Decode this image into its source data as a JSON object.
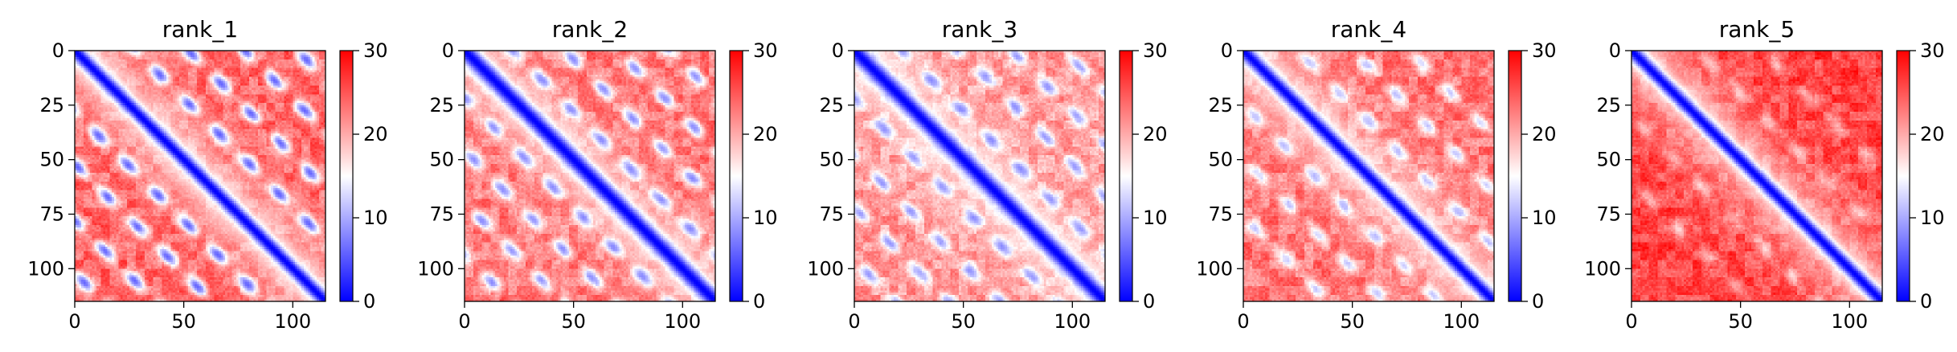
{
  "chart_data": [
    {
      "type": "heatmap",
      "title": "rank_1",
      "size": 115,
      "xlim": [
        0,
        115
      ],
      "ylim": [
        115,
        0
      ],
      "x_ticks": [
        0,
        50,
        100
      ],
      "y_ticks": [
        0,
        25,
        50,
        75,
        100
      ],
      "colorbar": {
        "colormap": "bwr",
        "vmin": 0,
        "vmax": 30,
        "ticks": [
          0,
          10,
          20,
          30
        ]
      },
      "band_offsets": [
        28,
        52,
        78,
        102
      ],
      "band_strength": 0.95,
      "diagonal_width": 4,
      "background_level": 24
    },
    {
      "type": "heatmap",
      "title": "rank_2",
      "size": 115,
      "xlim": [
        0,
        115
      ],
      "ylim": [
        115,
        0
      ],
      "x_ticks": [
        0,
        50,
        100
      ],
      "y_ticks": [
        0,
        25,
        50,
        75,
        100
      ],
      "colorbar": {
        "colormap": "bwr",
        "vmin": 0,
        "vmax": 30,
        "ticks": [
          0,
          10,
          20,
          30
        ]
      },
      "band_offsets": [
        22,
        46,
        70,
        94
      ],
      "band_strength": 0.8,
      "diagonal_width": 5,
      "background_level": 23
    },
    {
      "type": "heatmap",
      "title": "rank_3",
      "size": 115,
      "xlim": [
        0,
        115
      ],
      "ylim": [
        115,
        0
      ],
      "x_ticks": [
        0,
        50,
        100
      ],
      "y_ticks": [
        0,
        25,
        50,
        75,
        100
      ],
      "colorbar": {
        "colormap": "bwr",
        "vmin": 0,
        "vmax": 30,
        "ticks": [
          0,
          10,
          20,
          30
        ]
      },
      "band_offsets": [
        22,
        48,
        72,
        96
      ],
      "band_strength": 0.75,
      "diagonal_width": 5,
      "background_level": 21
    },
    {
      "type": "heatmap",
      "title": "rank_4",
      "size": 115,
      "xlim": [
        0,
        115
      ],
      "ylim": [
        115,
        0
      ],
      "x_ticks": [
        0,
        50,
        100
      ],
      "y_ticks": [
        0,
        25,
        50,
        75,
        100
      ],
      "colorbar": {
        "colormap": "bwr",
        "vmin": 0,
        "vmax": 30,
        "ticks": [
          0,
          10,
          20,
          30
        ]
      },
      "band_offsets": [
        25,
        50,
        76
      ],
      "band_strength": 0.6,
      "diagonal_width": 4,
      "background_level": 23
    },
    {
      "type": "heatmap",
      "title": "rank_5",
      "size": 115,
      "xlim": [
        0,
        115
      ],
      "ylim": [
        115,
        0
      ],
      "x_ticks": [
        0,
        50,
        100
      ],
      "y_ticks": [
        0,
        25,
        50,
        75,
        100
      ],
      "colorbar": {
        "colormap": "bwr",
        "vmin": 0,
        "vmax": 30,
        "ticks": [
          0,
          10,
          20,
          30
        ]
      },
      "band_offsets": [
        30,
        60
      ],
      "band_strength": 0.3,
      "diagonal_width": 4,
      "background_level": 26
    }
  ]
}
